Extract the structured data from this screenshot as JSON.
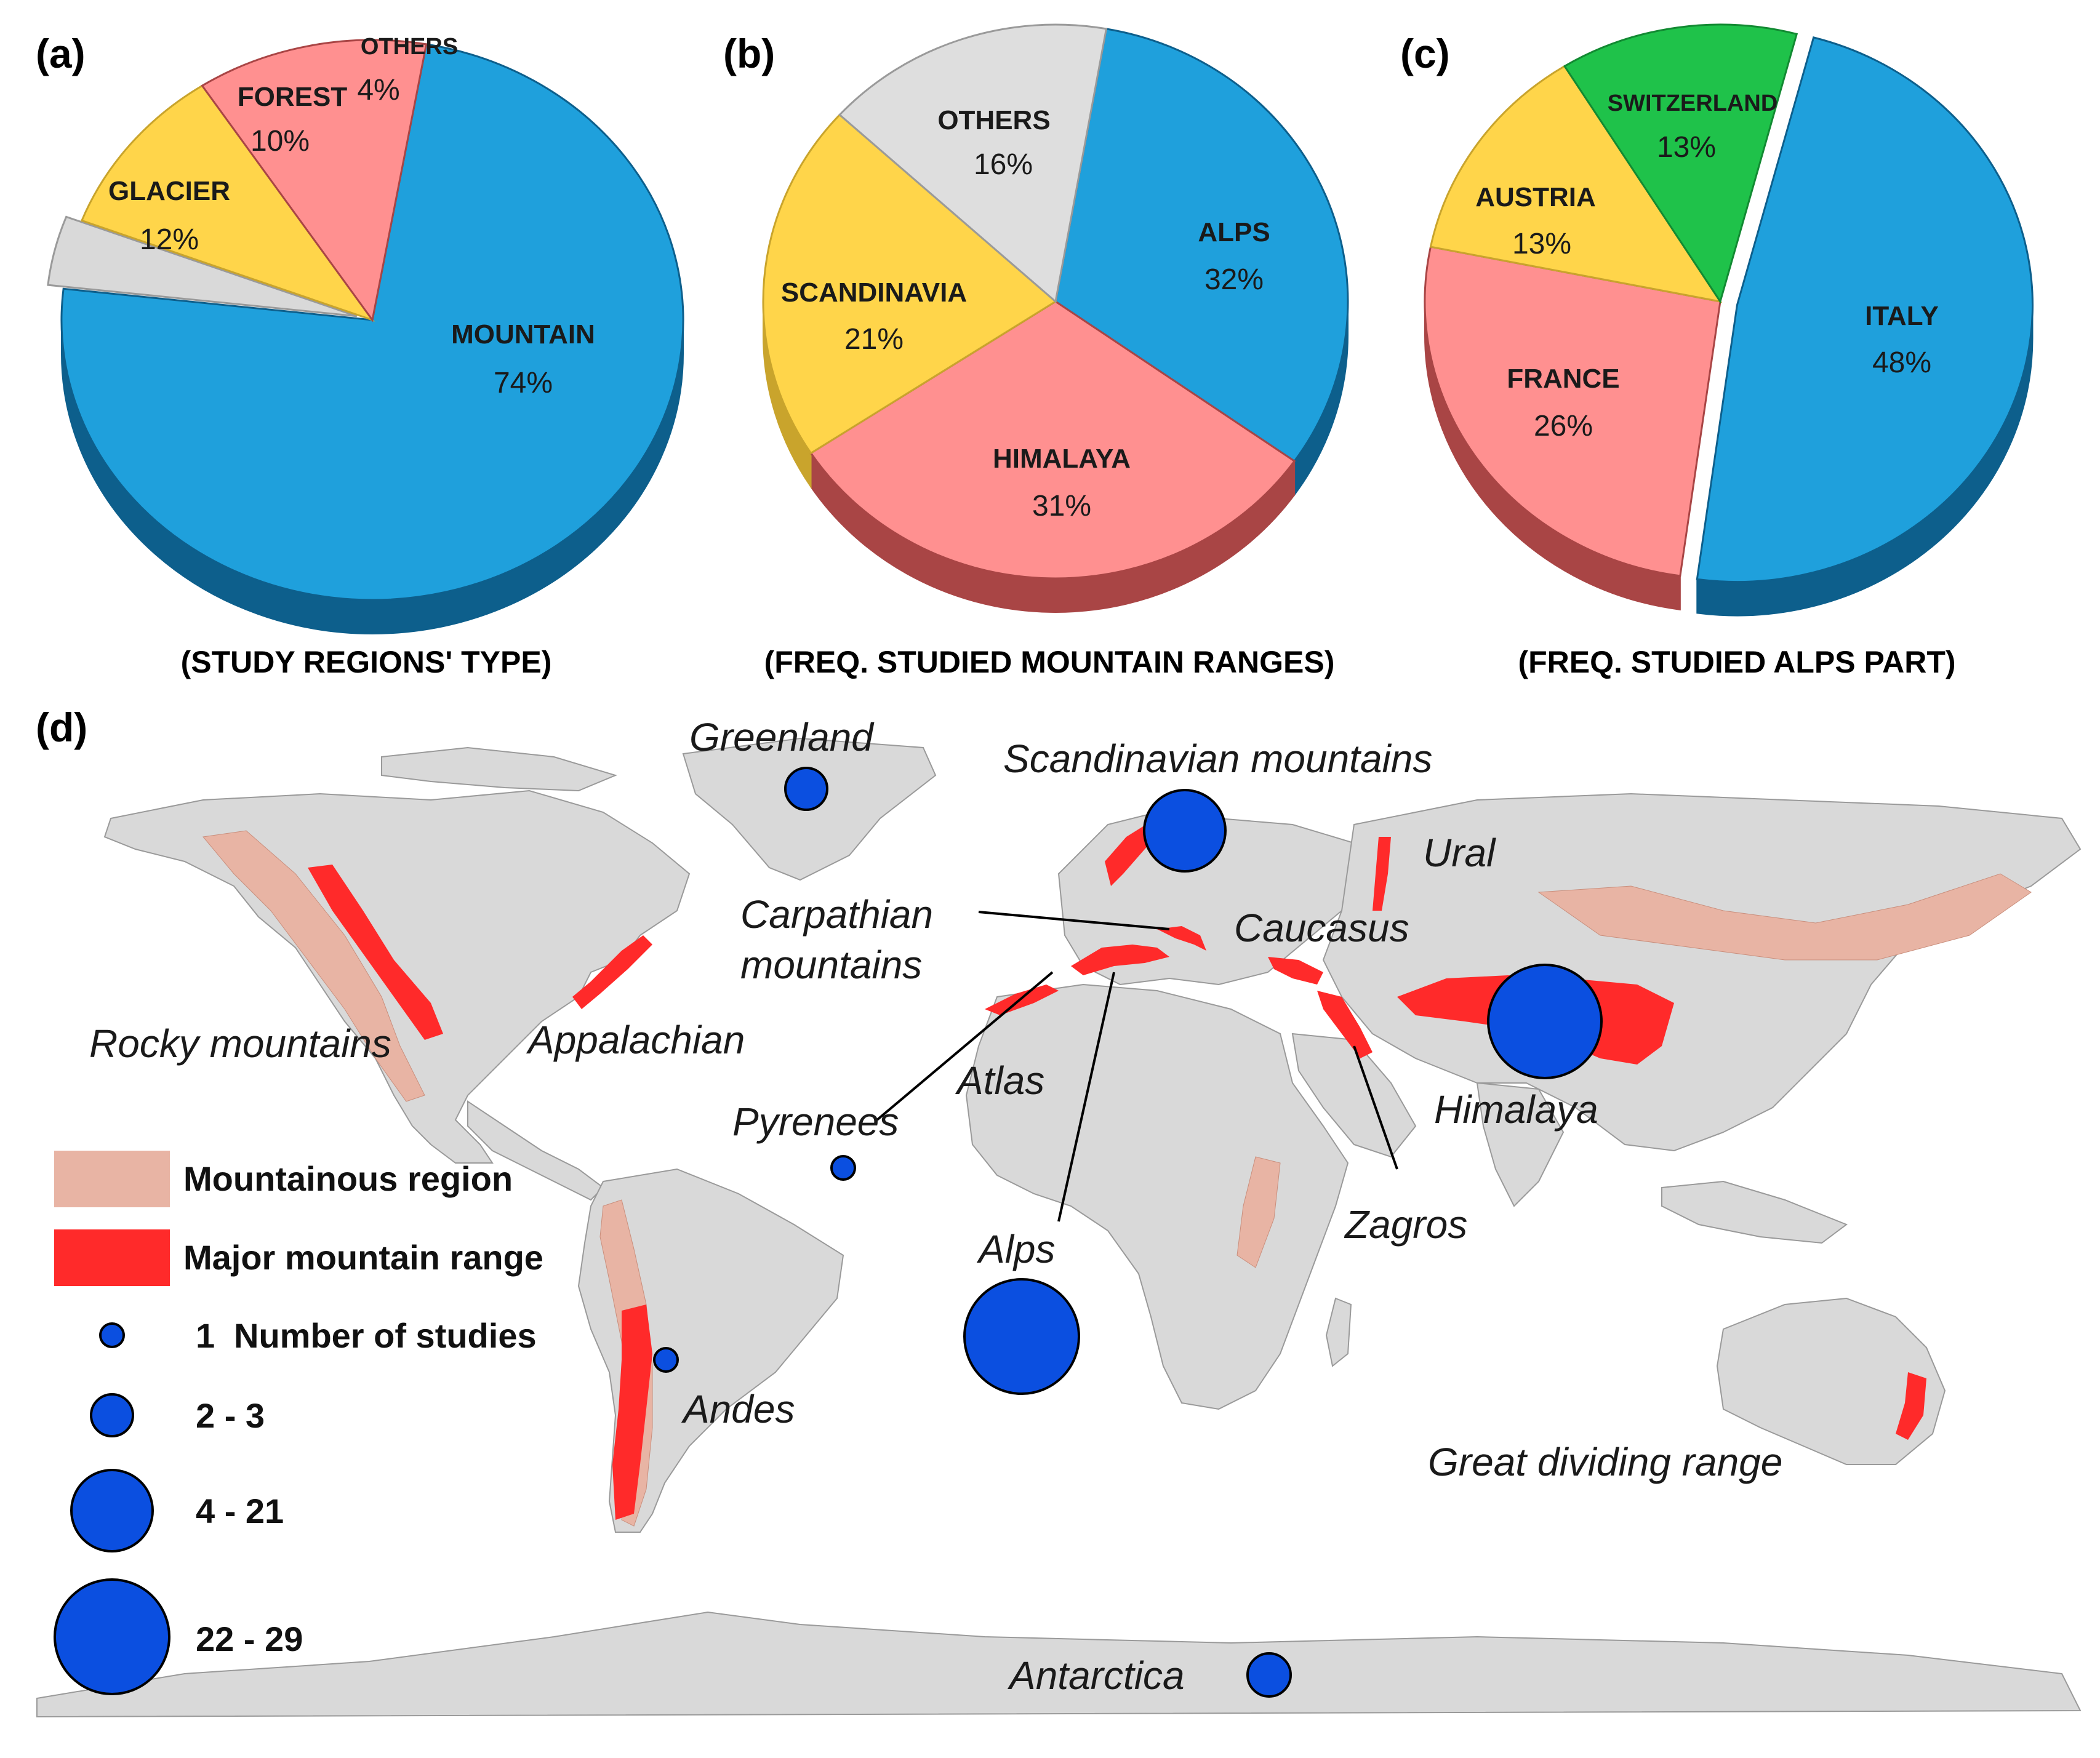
{
  "panels": {
    "a": {
      "letter": "(a)",
      "caption": "(STUDY REGIONS' TYPE)"
    },
    "b": {
      "letter": "(b)",
      "caption": "(FREQ. STUDIED MOUNTAIN RANGES)"
    },
    "c": {
      "letter": "(c)",
      "caption": "(FREQ. STUDIED ALPS PART)"
    },
    "d": {
      "letter": "(d)"
    }
  },
  "chart_data": [
    {
      "type": "pie",
      "title": "(STUDY REGIONS' TYPE)",
      "slices": [
        {
          "label": "MOUNTAIN",
          "value": 74,
          "value_label": "74%",
          "color": "#1fa0dc",
          "side": "#0d5f8c",
          "exploded": false
        },
        {
          "label": "OTHERS",
          "value": 4,
          "value_label": "4%",
          "color": "#d9d9d9",
          "side": "#9a9a9a",
          "exploded": true
        },
        {
          "label": "FOREST",
          "value": 10,
          "value_label": "10%",
          "color": "#ffd54a",
          "side": "#c9a42c",
          "exploded": false
        },
        {
          "label": "GLACIER",
          "value": 12,
          "value_label": "12%",
          "color": "#ff9090",
          "side": "#a94545",
          "exploded": false
        }
      ]
    },
    {
      "type": "pie",
      "title": "(FREQ. STUDIED MOUNTAIN RANGES)",
      "slices": [
        {
          "label": "ALPS",
          "value": 32,
          "value_label": "32%",
          "color": "#1fa0dc",
          "side": "#0d5f8c",
          "exploded": false
        },
        {
          "label": "HIMALAYA",
          "value": 31,
          "value_label": "31%",
          "color": "#ff9090",
          "side": "#a94545",
          "exploded": false
        },
        {
          "label": "SCANDINAVIA",
          "value": 21,
          "value_label": "21%",
          "color": "#ffd54a",
          "side": "#c9a42c",
          "exploded": false
        },
        {
          "label": "OTHERS",
          "value": 16,
          "value_label": "16%",
          "color": "#dedede",
          "side": "#9a9a9a",
          "exploded": false
        }
      ]
    },
    {
      "type": "pie",
      "title": "(FREQ. STUDIED ALPS PART)",
      "slices": [
        {
          "label": "ITALY",
          "value": 48,
          "value_label": "48%",
          "color": "#1fa0dc",
          "side": "#0d5f8c",
          "exploded": true
        },
        {
          "label": "FRANCE",
          "value": 26,
          "value_label": "26%",
          "color": "#ff9090",
          "side": "#a94545",
          "exploded": false
        },
        {
          "label": "AUSTRIA",
          "value": 13,
          "value_label": "13%",
          "color": "#ffd54a",
          "side": "#c9a42c",
          "exploded": false
        },
        {
          "label": "SWITZERLAND",
          "value": 13,
          "value_label": "13%",
          "color": "#1fc24a",
          "side": "#128a32",
          "exploded": false
        }
      ]
    }
  ],
  "map": {
    "labels": {
      "greenland": "Greenland",
      "scandinavian": "Scandinavian mountains",
      "ural": "Ural",
      "carpathian_1": "Carpathian",
      "carpathian_2": "mountains",
      "caucasus": "Caucasus",
      "rocky": "Rocky mountains",
      "appalachian": "Appalachian",
      "atlas": "Atlas",
      "pyrenees": "Pyrenees",
      "himalaya": "Himalaya",
      "zagros": "Zagros",
      "alps": "Alps",
      "andes": "Andes",
      "great_dividing": "Great dividing range",
      "antarctica": "Antarctica"
    },
    "legend": {
      "mountainous_region": "Mountainous region",
      "major_range": "Major mountain range",
      "size_1": "1",
      "size_1_title": "Number of studies",
      "size_2": "2 - 3",
      "size_3": "4 - 21",
      "size_4": "22 - 29"
    },
    "colors": {
      "mountainous_region": "#e8b4a4",
      "major_range": "#ff2a2a",
      "bubble": "#0b4fe0",
      "land": "#d9d9d9"
    },
    "bubble_classes": {
      "greenland": "2 - 3",
      "scandinavian": "4 - 21",
      "himalaya": "22 - 29",
      "pyrenees": "1",
      "alps": "22 - 29",
      "andes": "1",
      "antarctica": "2 - 3"
    }
  }
}
